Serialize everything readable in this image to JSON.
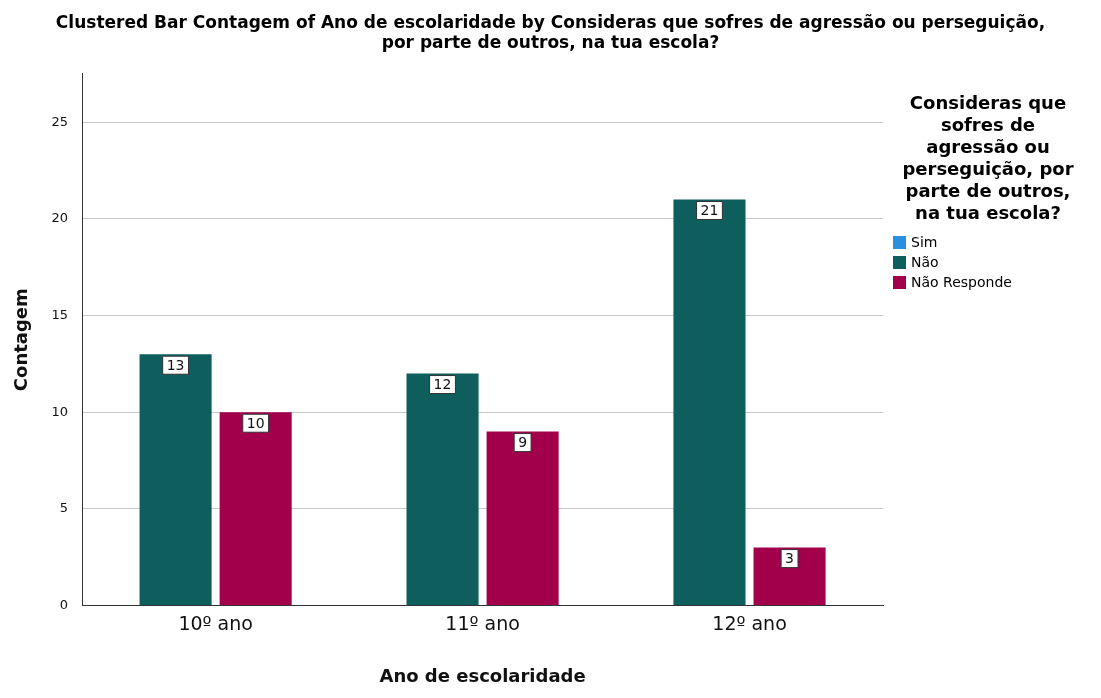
{
  "chart_data": {
    "type": "bar",
    "title": "Clustered Bar Contagem of Ano de escolaridade by Consideras que sofres de agressão ou perseguição, por parte de outros, na tua escola?",
    "xlabel": "Ano de escolaridade",
    "ylabel": "Contagem",
    "legend_title": "Consideras que sofres de agressão ou perseguição, por parte de outros, na tua escola?",
    "categories": [
      "10º ano",
      "11º ano",
      "12º ano"
    ],
    "series": [
      {
        "name": "Sim",
        "color": "#2a8fe0",
        "values": [
          null,
          null,
          null
        ]
      },
      {
        "name": "Não",
        "color": "#0d5e5d",
        "values": [
          13,
          12,
          21
        ]
      },
      {
        "name": "Não Responde",
        "color": "#a3004c",
        "values": [
          10,
          9,
          3
        ]
      }
    ],
    "ylim": [
      0,
      27.5
    ],
    "yticks": [
      0,
      5,
      10,
      15,
      20,
      25
    ],
    "grid": "y",
    "legend": "right",
    "data_labels": true
  }
}
